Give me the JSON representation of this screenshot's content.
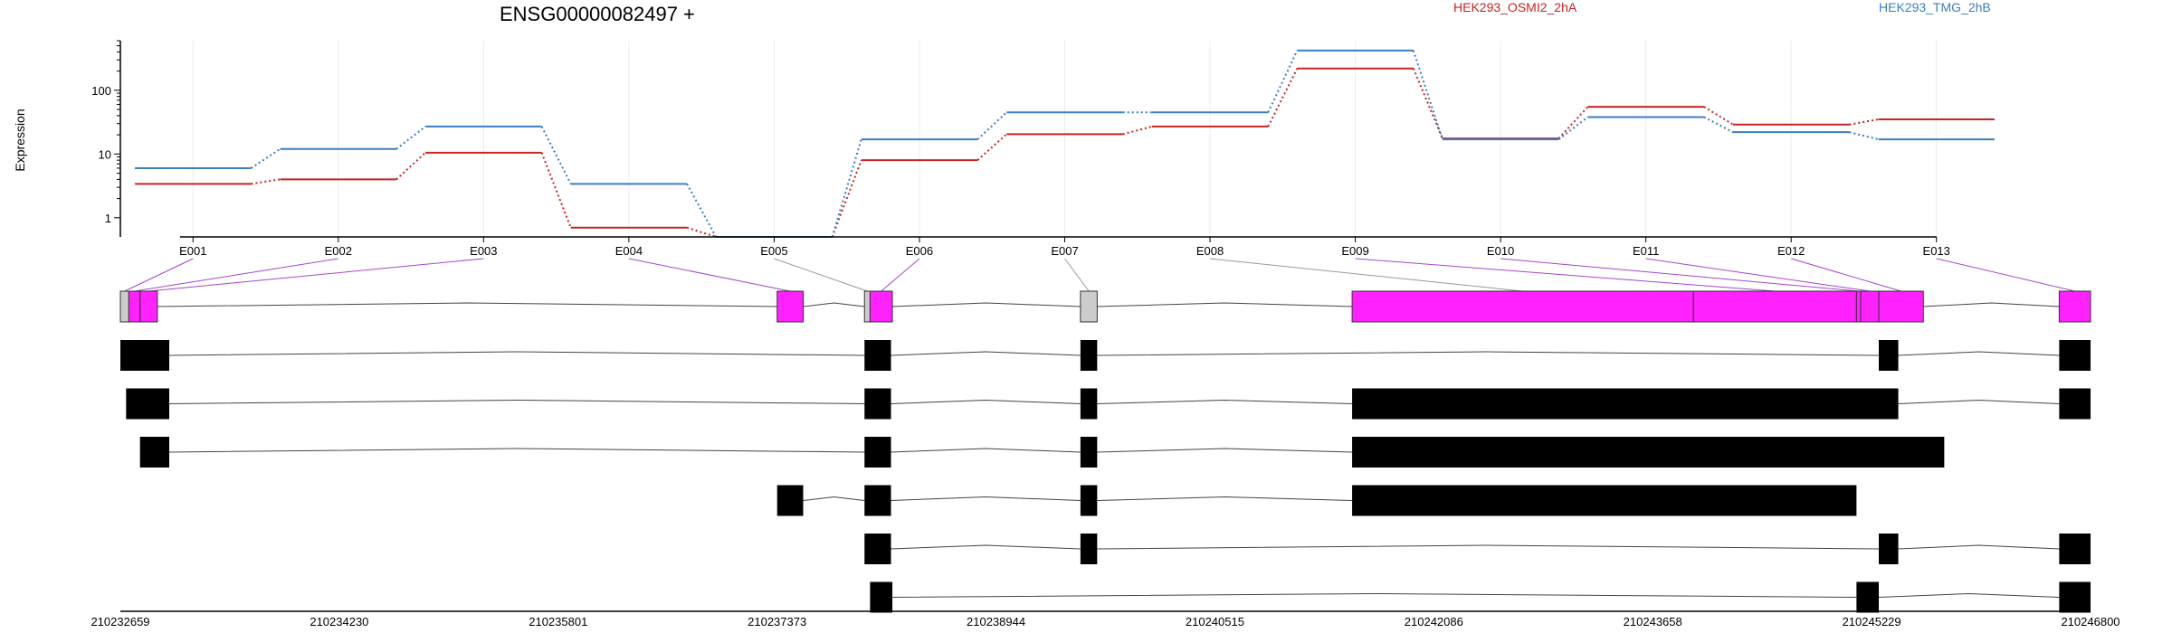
{
  "chart_data": {
    "type": "line",
    "title": "ENSG00000082497 +",
    "ylabel": "Expression",
    "xlabel": "",
    "y_scale": "log",
    "ylim": [
      0.5,
      600
    ],
    "grid": "vertical-only",
    "legend_position": "top-right",
    "categories": [
      "E001",
      "E002",
      "E003",
      "E004",
      "E005",
      "E006",
      "E007",
      "E008",
      "E009",
      "E010",
      "E011",
      "E012",
      "E013"
    ],
    "series": [
      {
        "name": "HEK293_OSMI2_2hA",
        "color": "#cc2222",
        "values": [
          3.4,
          4.0,
          10.5,
          0.7,
          0.5,
          8.0,
          20.5,
          27.0,
          220.0,
          17.5,
          55.0,
          29.0,
          35.0
        ]
      },
      {
        "name": "HEK293_TMG_2hB",
        "color": "#3a7fc1",
        "values": [
          6.0,
          12.0,
          27.0,
          3.4,
          0.5,
          17.0,
          45.0,
          45.0,
          420.0,
          17.0,
          38.0,
          22.0,
          17.0
        ]
      }
    ],
    "y_ticks": [
      {
        "value": 1,
        "label": "1"
      },
      {
        "value": 10,
        "label": "10"
      },
      {
        "value": 100,
        "label": "100"
      }
    ],
    "genome_axis": {
      "start": 210232659,
      "end": 210246800,
      "tick_labels": [
        "210232659",
        "210234230",
        "210235801",
        "210237373",
        "210238944",
        "210240515",
        "210242086",
        "210243658",
        "210245229",
        "210246800"
      ]
    },
    "exon_bins": [
      {
        "id": "E001",
        "start": 210232659,
        "end": 210232720,
        "color": "#cccccc"
      },
      {
        "id": "E002",
        "start": 210232720,
        "end": 210232801,
        "color": "#ff22ff"
      },
      {
        "id": "E003",
        "start": 210232801,
        "end": 210232925,
        "color": "#ff22ff"
      },
      {
        "id": "E004",
        "start": 210237373,
        "end": 210237560,
        "color": "#ff22ff"
      },
      {
        "id": "E005",
        "start": 210238000,
        "end": 210238040,
        "color": "#cccccc"
      },
      {
        "id": "E006",
        "start": 210238040,
        "end": 210238200,
        "color": "#ff22ff"
      },
      {
        "id": "E007",
        "start": 210239550,
        "end": 210239670,
        "color": "#cccccc"
      },
      {
        "id": "E008",
        "start": 210241500,
        "end": 210243950,
        "color": "#ff22ff"
      },
      {
        "id": "E009",
        "start": 210243950,
        "end": 210245120,
        "color": "#ff22ff"
      },
      {
        "id": "E010",
        "start": 210245120,
        "end": 210245150,
        "color": "#ff22ff"
      },
      {
        "id": "E011",
        "start": 210245150,
        "end": 210245280,
        "color": "#ff22ff"
      },
      {
        "id": "E012",
        "start": 210245280,
        "end": 210245600,
        "color": "#ff22ff"
      },
      {
        "id": "E013",
        "start": 210246575,
        "end": 210246800,
        "color": "#ff22ff"
      }
    ],
    "bin_link_colors": [
      "#aa44cc",
      "#aa44cc",
      "#aa44cc",
      "#aa44cc",
      "#999999",
      "#aa44cc",
      "#999999",
      "#999999",
      "#aa44cc",
      "#aa44cc",
      "#aa44cc",
      "#aa44cc",
      "#aa44cc"
    ],
    "transcripts": [
      {
        "exons": [
          [
            210232659,
            210233010
          ],
          [
            210238000,
            210238190
          ],
          [
            210239550,
            210239670
          ],
          [
            210245280,
            210245420
          ],
          [
            210246575,
            210246800
          ]
        ]
      },
      {
        "exons": [
          [
            210232700,
            210233010
          ],
          [
            210238000,
            210238190
          ],
          [
            210239550,
            210239670
          ],
          [
            210241500,
            210245420
          ],
          [
            210246575,
            210246800
          ]
        ]
      },
      {
        "exons": [
          [
            210232800,
            210233010
          ],
          [
            210238000,
            210238190
          ],
          [
            210239550,
            210239670
          ],
          [
            210241500,
            210245750
          ]
        ]
      },
      {
        "exons": [
          [
            210237373,
            210237560
          ],
          [
            210238000,
            210238190
          ],
          [
            210239550,
            210239670
          ],
          [
            210241500,
            210245120
          ]
        ]
      },
      {
        "exons": [
          [
            210238000,
            210238190
          ],
          [
            210239550,
            210239670
          ],
          [
            210245280,
            210245420
          ],
          [
            210246575,
            210246800
          ]
        ]
      },
      {
        "exons": [
          [
            210238040,
            210238200
          ],
          [
            210245120,
            210245280
          ],
          [
            210246575,
            210246800
          ]
        ]
      }
    ]
  }
}
